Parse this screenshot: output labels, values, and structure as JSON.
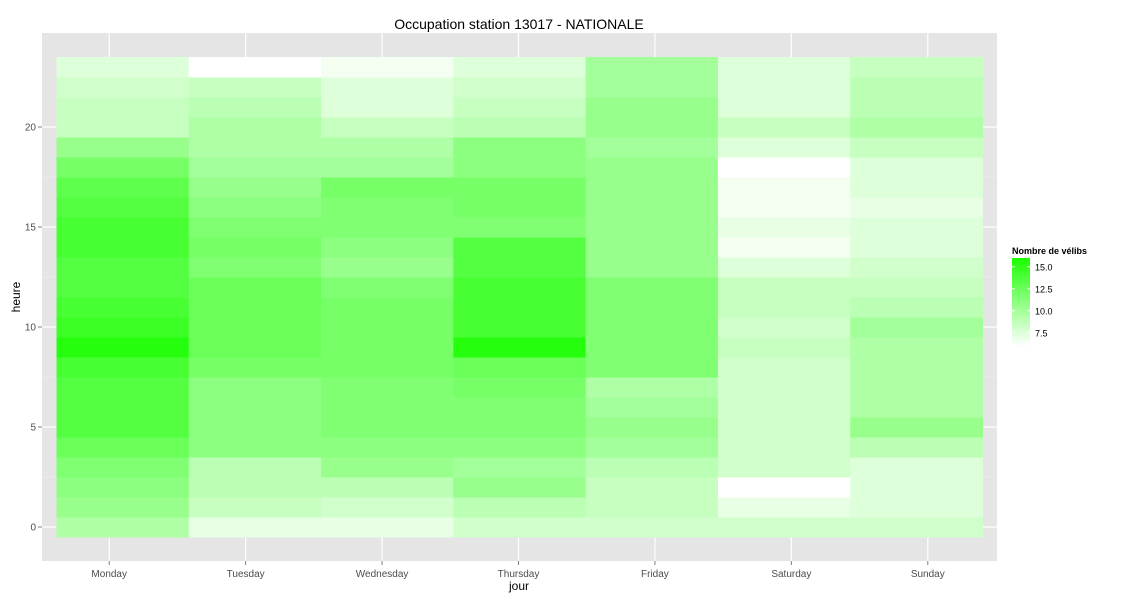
{
  "chart_data": {
    "type": "heatmap",
    "title": "Occupation station 13017 - NATIONALE",
    "xlabel": "jour",
    "ylabel": "heure",
    "x_categories": [
      "Monday",
      "Tuesday",
      "Wednesday",
      "Thursday",
      "Friday",
      "Saturday",
      "Sunday"
    ],
    "y_range": [
      -0.5,
      23.5
    ],
    "y_ticks": [
      0,
      5,
      10,
      15,
      20
    ],
    "y_tick_labels": [
      "0",
      "5",
      "10",
      "15",
      "20"
    ],
    "grid": true,
    "legend": {
      "title": "Nombre de vélibs",
      "position": "right",
      "ticks": [
        15.0,
        12.5,
        10.0,
        7.5
      ],
      "tick_labels": [
        "15.0",
        "12.5",
        "10.0",
        "7.5"
      ],
      "range": [
        6,
        16
      ],
      "low_color": "#ffffff",
      "high_color": "#1aff00"
    },
    "hours": [
      0,
      1,
      2,
      3,
      4,
      5,
      6,
      7,
      8,
      9,
      10,
      11,
      12,
      13,
      14,
      15,
      16,
      17,
      18,
      19,
      20,
      21,
      22,
      23
    ],
    "series": [
      {
        "name": "Monday",
        "values": [
          9.5,
          10.5,
          11.0,
          11.5,
          12.5,
          13.5,
          13.5,
          13.5,
          14.0,
          15.5,
          14.5,
          14.0,
          13.5,
          13.5,
          14.0,
          14.0,
          13.5,
          13.0,
          12.0,
          10.5,
          8.5,
          8.5,
          8.0,
          7.5
        ]
      },
      {
        "name": "Tuesday",
        "values": [
          7.0,
          8.5,
          9.0,
          9.0,
          11.0,
          11.0,
          11.0,
          11.0,
          12.0,
          12.5,
          12.5,
          12.5,
          12.5,
          11.5,
          12.0,
          11.5,
          11.0,
          10.5,
          10.0,
          9.5,
          9.5,
          9.0,
          8.5,
          6.0
        ]
      },
      {
        "name": "Wednesday",
        "values": [
          7.0,
          8.0,
          9.0,
          10.5,
          11.0,
          11.5,
          11.5,
          11.5,
          12.0,
          12.0,
          12.0,
          12.0,
          11.5,
          10.5,
          11.0,
          11.5,
          11.5,
          12.0,
          10.0,
          9.5,
          8.5,
          7.5,
          7.5,
          6.5
        ]
      },
      {
        "name": "Thursday",
        "values": [
          8.0,
          9.0,
          10.5,
          10.0,
          11.0,
          11.5,
          11.5,
          12.0,
          12.5,
          15.5,
          14.0,
          14.0,
          14.0,
          13.5,
          13.5,
          11.5,
          12.0,
          12.0,
          11.0,
          11.0,
          9.0,
          8.5,
          8.0,
          7.5
        ]
      },
      {
        "name": "Friday",
        "values": [
          8.0,
          8.5,
          8.5,
          9.0,
          10.0,
          10.5,
          10.0,
          9.5,
          11.5,
          11.5,
          11.5,
          11.5,
          11.5,
          10.5,
          10.5,
          10.5,
          10.5,
          10.5,
          10.5,
          10.0,
          10.5,
          10.5,
          10.0,
          10.0
        ]
      },
      {
        "name": "Saturday",
        "values": [
          8.0,
          7.0,
          6.0,
          8.0,
          8.0,
          8.0,
          8.0,
          8.0,
          8.0,
          8.5,
          8.0,
          8.5,
          8.5,
          7.5,
          6.5,
          7.0,
          6.5,
          6.5,
          6.0,
          7.5,
          8.5,
          7.5,
          7.5,
          7.5
        ]
      },
      {
        "name": "Sunday",
        "values": [
          8.0,
          7.5,
          7.5,
          7.5,
          9.0,
          10.5,
          9.5,
          9.5,
          9.5,
          9.5,
          10.0,
          9.0,
          8.5,
          8.0,
          7.5,
          7.5,
          7.0,
          7.5,
          7.5,
          8.5,
          9.5,
          9.0,
          9.0,
          8.5
        ]
      }
    ]
  }
}
